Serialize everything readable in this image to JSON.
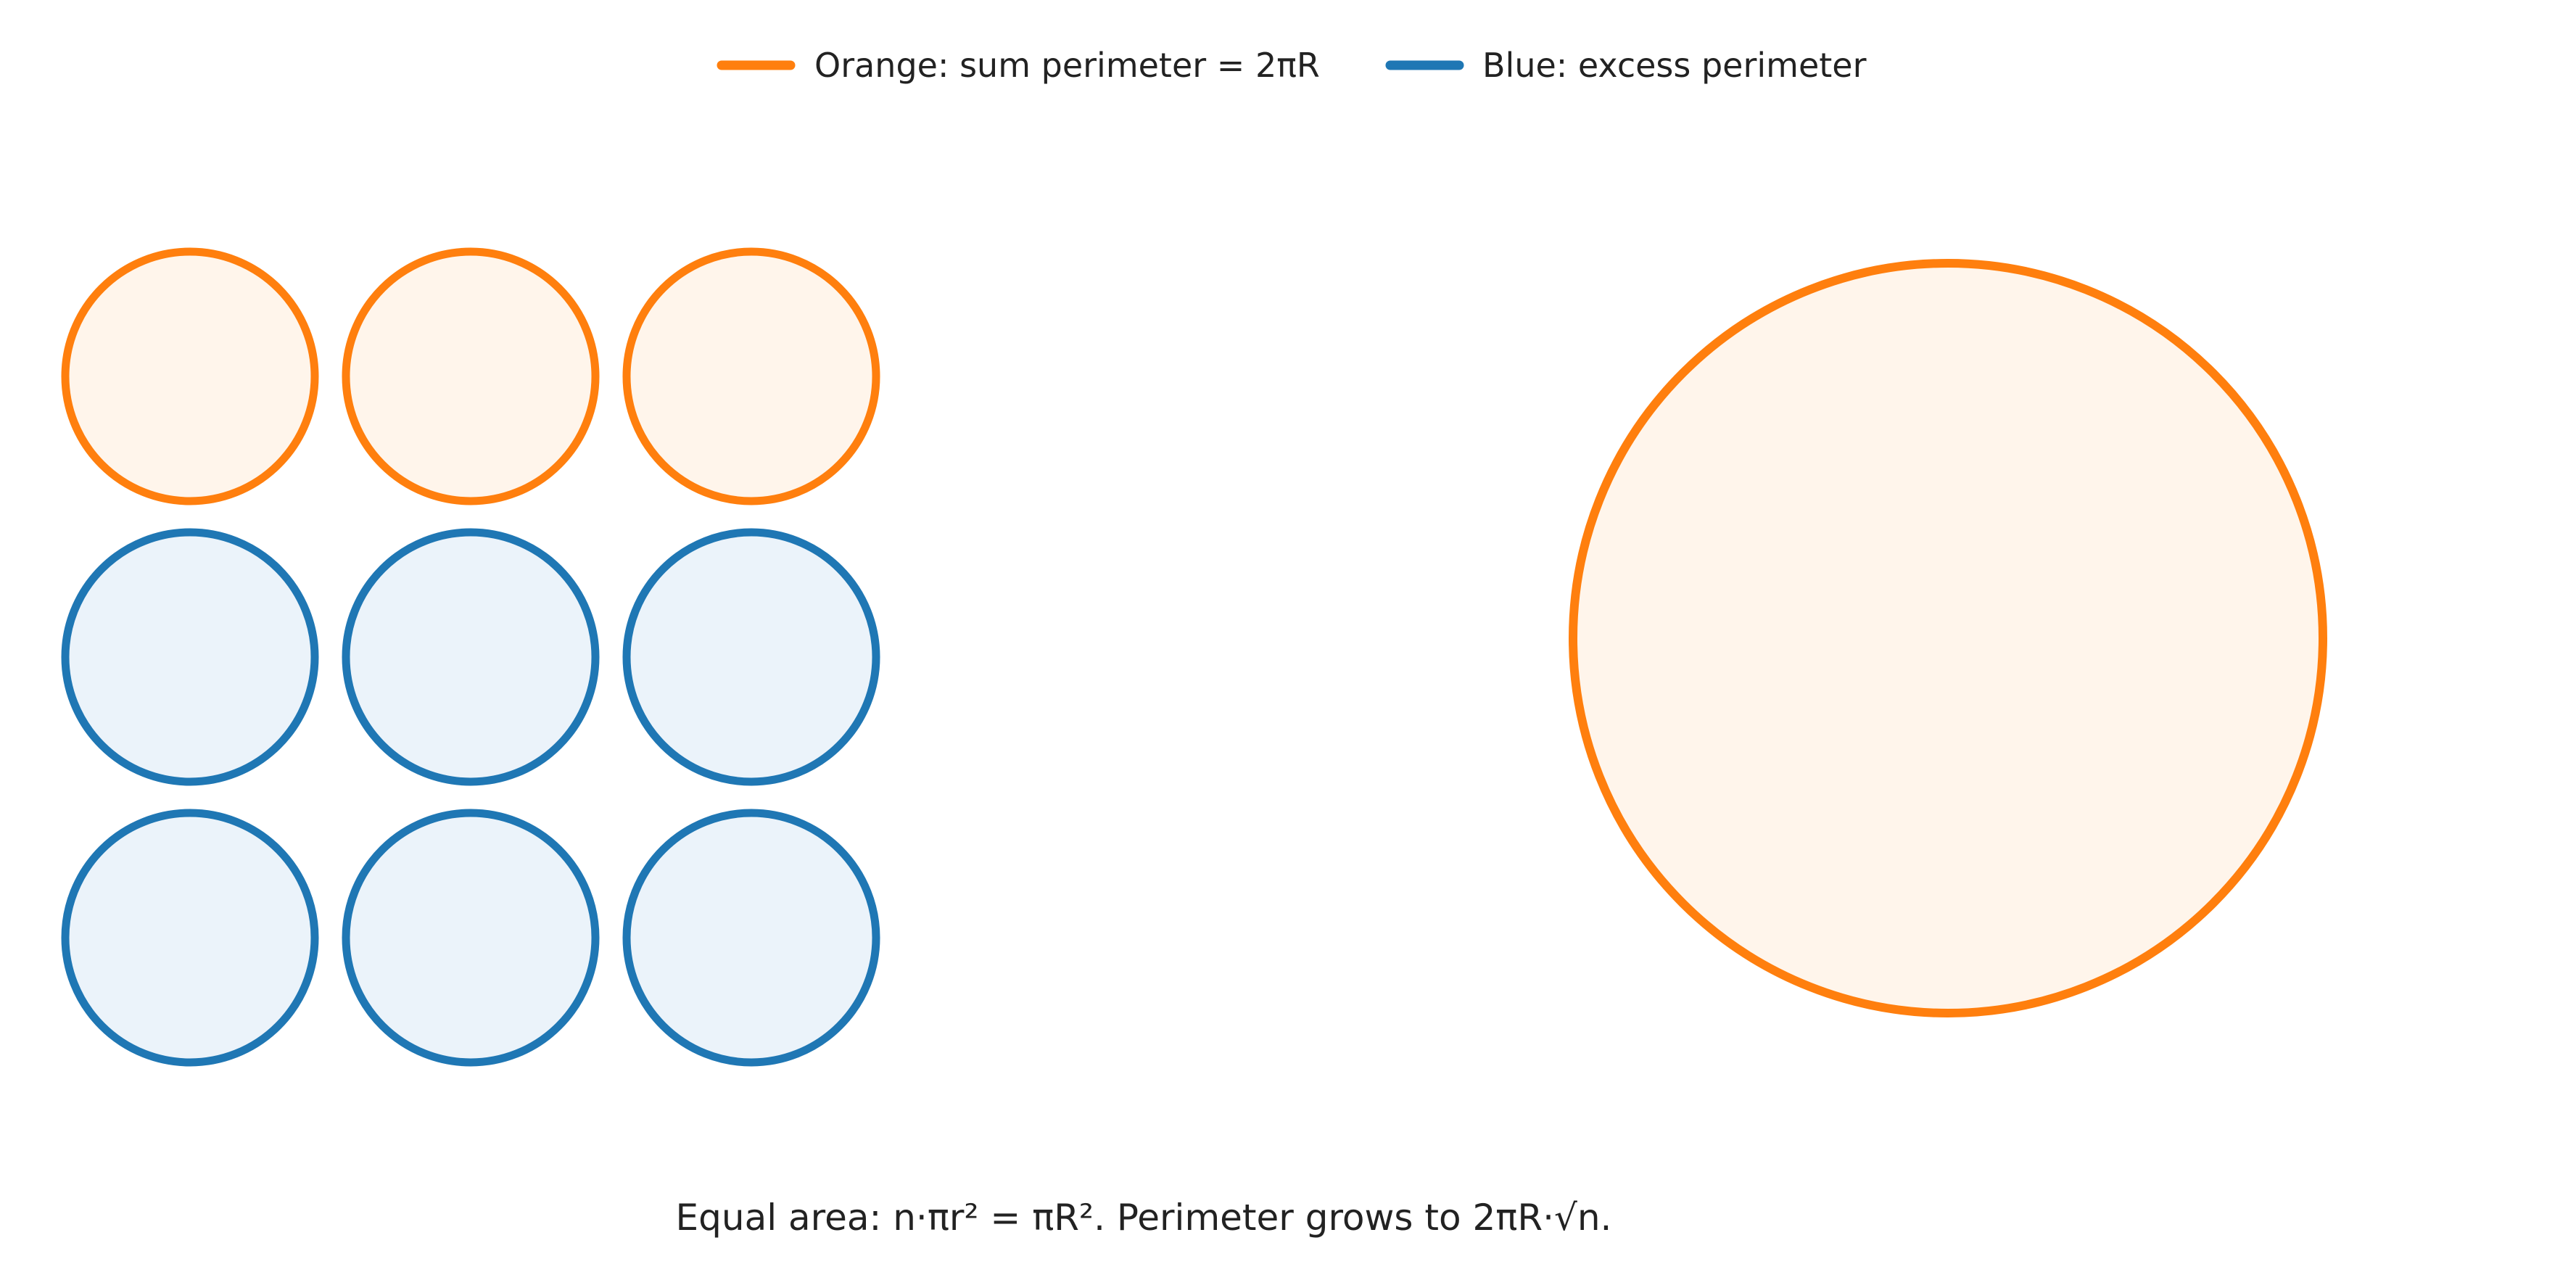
{
  "legend": {
    "items": [
      {
        "label": "Orange: sum perimeter = 2πR",
        "color": "#ff7f0e"
      },
      {
        "label": "Blue: excess perimeter",
        "color": "#1f77b4"
      }
    ]
  },
  "caption": "Equal area: n·πr² = πR². Perimeter grows to 2πR·√n.",
  "colors": {
    "orange_stroke": "#ff7f0e",
    "orange_fill": "#fff5eb",
    "blue_stroke": "#1f77b4",
    "blue_fill": "#ebf3fa"
  },
  "grid": {
    "rows": 3,
    "cols": 3,
    "cells": [
      "orange",
      "orange",
      "orange",
      "blue",
      "blue",
      "blue",
      "blue",
      "blue",
      "blue"
    ]
  },
  "big_circle": {
    "kind": "orange"
  }
}
